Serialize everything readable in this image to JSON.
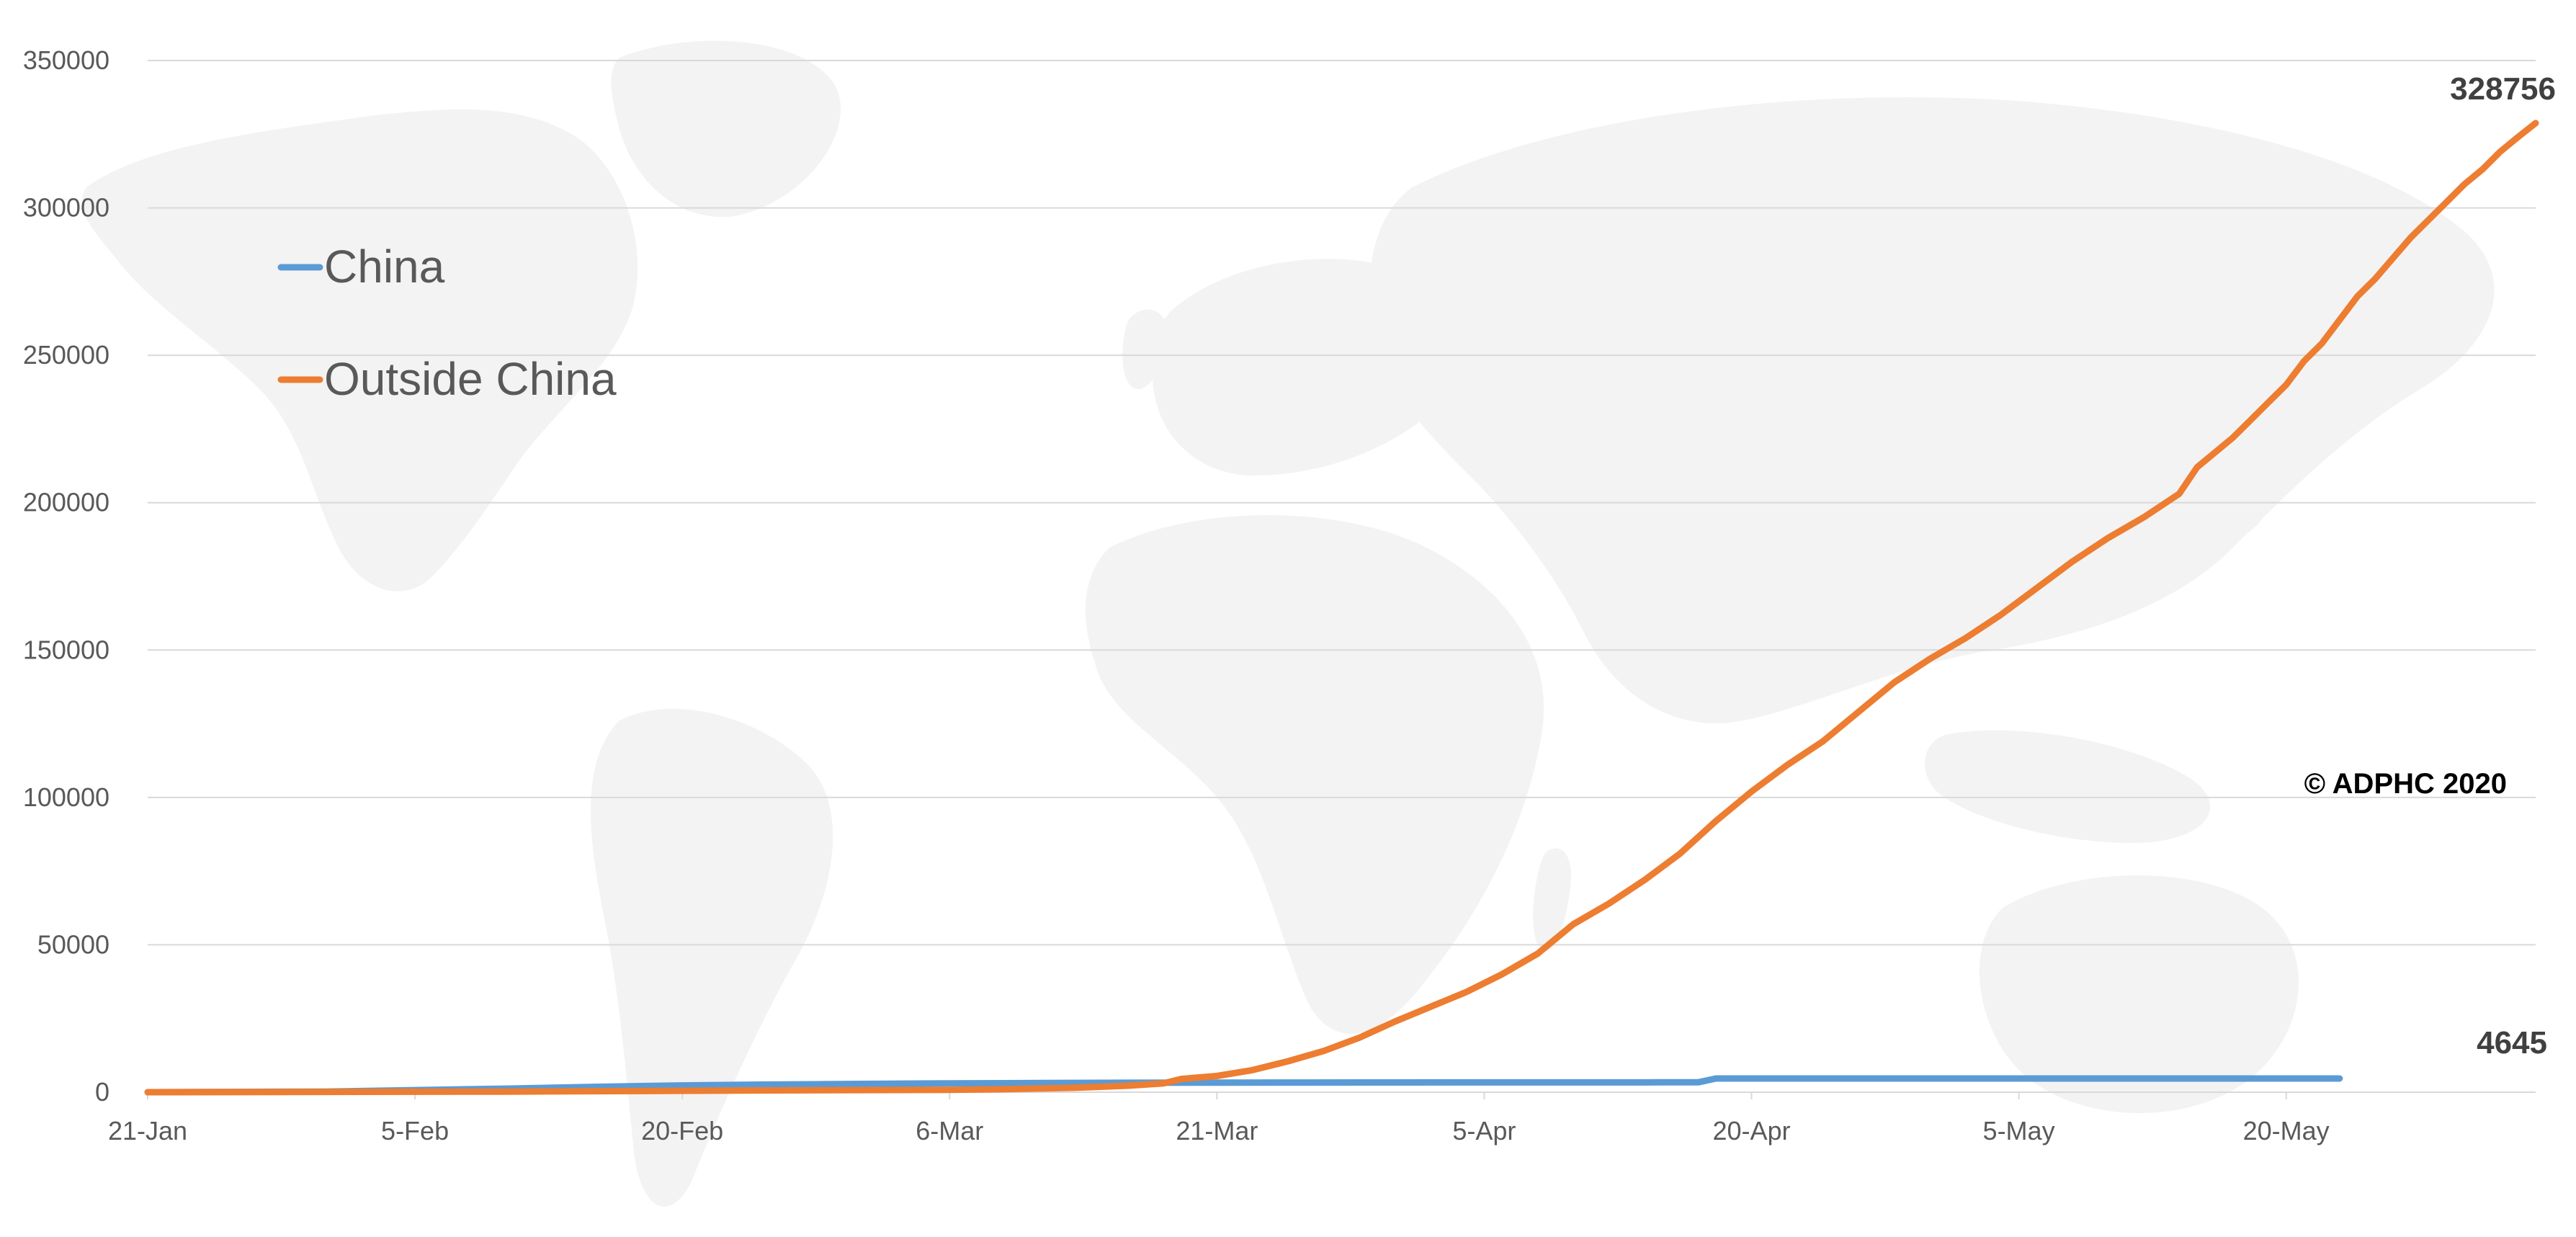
{
  "chart_data": {
    "type": "line",
    "title": "",
    "xlabel": "",
    "ylabel": "",
    "x_start_date": "21-Jan",
    "ylim": [
      0,
      350000
    ],
    "y_ticks": [
      "0",
      "50000",
      "100000",
      "150000",
      "200000",
      "250000",
      "300000",
      "350000"
    ],
    "x_ticks": [
      "21-Jan",
      "5-Feb",
      "20-Feb",
      "6-Mar",
      "21-Mar",
      "5-Apr",
      "20-Apr",
      "5-May",
      "20-May"
    ],
    "grid": "horizontal",
    "legend_position": "top-left",
    "series": [
      {
        "name": "China",
        "color": "#5B9BD5",
        "points": [
          [
            0,
            0
          ],
          [
            5,
            100
          ],
          [
            10,
            200
          ],
          [
            15,
            700
          ],
          [
            20,
            1200
          ],
          [
            25,
            1800
          ],
          [
            30,
            2300
          ],
          [
            35,
            2600
          ],
          [
            40,
            2800
          ],
          [
            45,
            3000
          ],
          [
            50,
            3100
          ],
          [
            55,
            3200
          ],
          [
            60,
            3250
          ],
          [
            65,
            3280
          ],
          [
            70,
            3300
          ],
          [
            75,
            3320
          ],
          [
            80,
            3330
          ],
          [
            85,
            3340
          ],
          [
            87,
            3345
          ],
          [
            88,
            4632
          ],
          [
            95,
            4636
          ],
          [
            105,
            4640
          ],
          [
            115,
            4643
          ],
          [
            123,
            4645
          ]
        ],
        "end_label": "4645"
      },
      {
        "name": "Outside China",
        "color": "#ED7D31",
        "points": [
          [
            0,
            0
          ],
          [
            20,
            200
          ],
          [
            35,
            600
          ],
          [
            45,
            800
          ],
          [
            48,
            1000
          ],
          [
            52,
            1500
          ],
          [
            55,
            2200
          ],
          [
            57,
            3000
          ],
          [
            58,
            4500
          ],
          [
            60,
            5500
          ],
          [
            62,
            7500
          ],
          [
            64,
            10500
          ],
          [
            66,
            14000
          ],
          [
            68,
            18500
          ],
          [
            70,
            24000
          ],
          [
            72,
            29000
          ],
          [
            74,
            34000
          ],
          [
            76,
            40000
          ],
          [
            78,
            47000
          ],
          [
            80,
            57000
          ],
          [
            82,
            64000
          ],
          [
            84,
            72000
          ],
          [
            86,
            81000
          ],
          [
            88,
            92000
          ],
          [
            90,
            102000
          ],
          [
            92,
            111000
          ],
          [
            94,
            119000
          ],
          [
            96,
            129000
          ],
          [
            98,
            139000
          ],
          [
            100,
            147000
          ],
          [
            102,
            154000
          ],
          [
            104,
            162000
          ],
          [
            106,
            171000
          ],
          [
            108,
            180000
          ],
          [
            110,
            188000
          ],
          [
            112,
            195000
          ],
          [
            114,
            203000
          ],
          [
            115,
            212000
          ],
          [
            117,
            222000
          ],
          [
            118,
            228000
          ],
          [
            119,
            234000
          ],
          [
            120,
            240000
          ],
          [
            121,
            248000
          ],
          [
            122,
            254000
          ],
          [
            123,
            262000
          ],
          [
            124,
            270000
          ],
          [
            125,
            276000
          ],
          [
            126,
            283000
          ],
          [
            127,
            290000
          ],
          [
            128,
            296000
          ],
          [
            129,
            302000
          ],
          [
            130,
            308000
          ],
          [
            131,
            313000
          ],
          [
            132,
            319000
          ],
          [
            133,
            324000
          ],
          [
            134,
            328756
          ]
        ],
        "end_label": "328756"
      }
    ]
  },
  "legend": {
    "items": [
      {
        "name": "China",
        "color": "#5B9BD5"
      },
      {
        "name": "Outside China",
        "color": "#ED7D31"
      }
    ]
  },
  "watermark": {
    "copyright": "© ADPHC 2020"
  }
}
